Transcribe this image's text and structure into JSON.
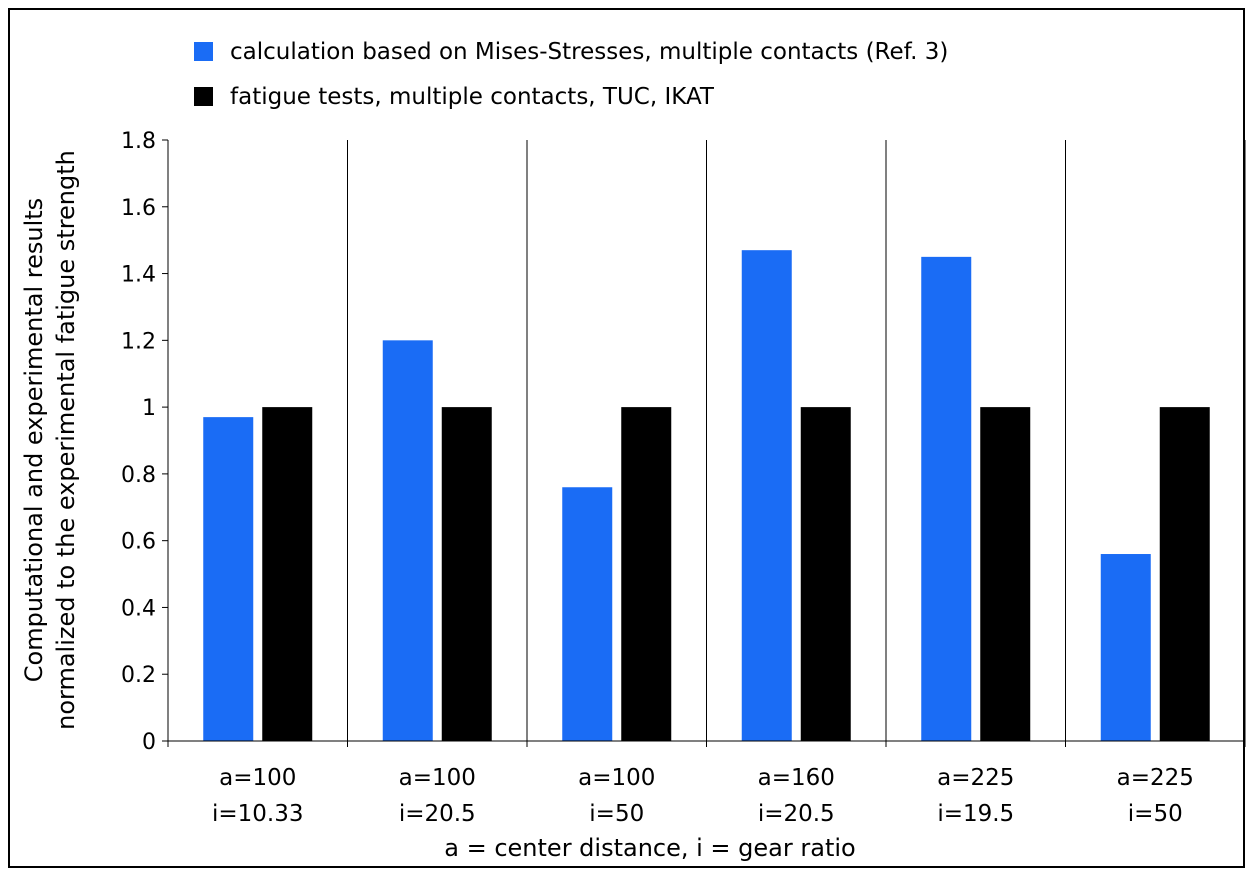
{
  "chart_data": {
    "type": "bar",
    "categories": [
      [
        "a=100",
        "i=10.33"
      ],
      [
        "a=100",
        "i=20.5"
      ],
      [
        "a=100",
        "i=50"
      ],
      [
        "a=160",
        "i=20.5"
      ],
      [
        "a=225",
        "i=19.5"
      ],
      [
        "a=225",
        "i=50"
      ]
    ],
    "series": [
      {
        "name": "calculation based on Mises-Stresses, multiple contacts (Ref. 3)",
        "color": "#1a6cf5",
        "values": [
          0.97,
          1.2,
          0.76,
          1.47,
          1.45,
          0.56
        ]
      },
      {
        "name": "fatigue tests, multiple contacts, TUC, IKAT",
        "color": "#000000",
        "values": [
          1,
          1,
          1,
          1,
          1,
          1
        ]
      }
    ],
    "xlabel": "a = center distance, i = gear ratio",
    "ylabel": [
      "Computational and experimental results",
      "normalized to the experimental fatigue strength"
    ],
    "ylim": [
      0,
      1.8
    ],
    "yticks": [
      "0",
      "0.2",
      "0.4",
      "0.6",
      "0.8",
      "1",
      "1.2",
      "1.4",
      "1.6",
      "1.8"
    ],
    "grid": "vertical category separators",
    "legend_position": "top"
  }
}
